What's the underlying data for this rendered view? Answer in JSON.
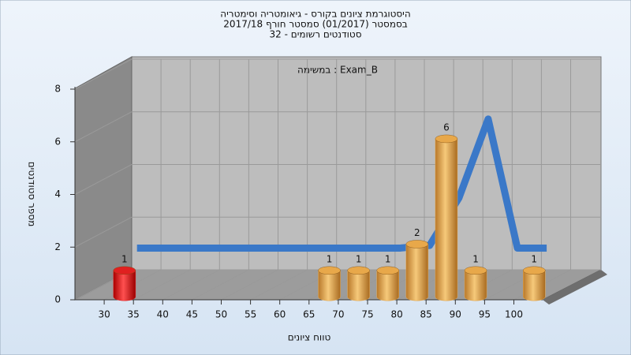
{
  "chart_data": {
    "type": "bar3d",
    "title": [
      "היסטוגרמת ציונים בקורס - גיאומטריה וסימטריה",
      "בסמסטר  (01/2017)  סמסטר חורף 2017/18",
      "סטודנטים רשומים - 32"
    ],
    "subtitle": "במשימה : Exam_B",
    "x_label": "טווח ציונים",
    "y_label": "מספר סטודנטים",
    "categories": [
      30,
      35,
      40,
      45,
      50,
      55,
      60,
      65,
      70,
      75,
      80,
      85,
      90,
      95,
      100
    ],
    "values": [
      1,
      0,
      0,
      0,
      0,
      0,
      0,
      1,
      1,
      1,
      2,
      6,
      1,
      0,
      1
    ],
    "colors": [
      "#e02020",
      "#e8a84a",
      "#e8a84a",
      "#e8a84a",
      "#e8a84a",
      "#e8a84a",
      "#e8a84a",
      "#e8a84a",
      "#e8a84a",
      "#e8a84a",
      "#e8a84a",
      "#e8a84a",
      "#e8a84a",
      "#e8a84a",
      "#e8a84a"
    ],
    "curve": {
      "color": "#3a78c8",
      "values": [
        1.6,
        1.6,
        1.6,
        1.6,
        1.6,
        1.6,
        1.6,
        1.6,
        1.6,
        1.6,
        1.7,
        3.5,
        6.5,
        1.6,
        1.6
      ]
    },
    "ylim": [
      0,
      8
    ],
    "yticks": [
      0,
      2,
      4,
      6,
      8
    ],
    "grid": true
  }
}
